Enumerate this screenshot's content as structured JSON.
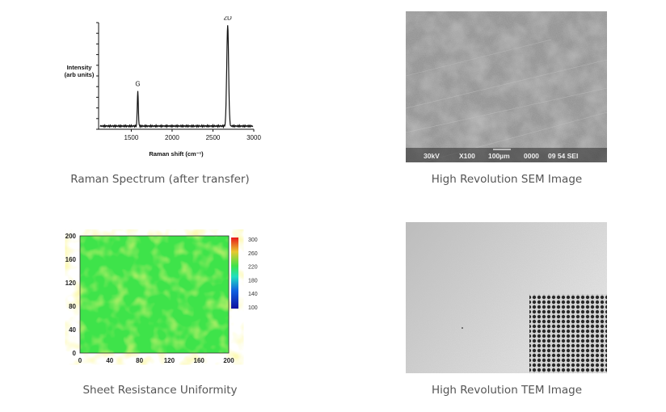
{
  "captions": {
    "raman": "Raman Spectrum (after transfer)",
    "sem": "High Revolution SEM Image",
    "sheet": "Sheet Resistance Uniformity",
    "tem": "High Revolution TEM Image"
  },
  "sem_overlay": {
    "voltage": "30kV",
    "magnification": "X100",
    "scale": "100µm",
    "code": "0000",
    "label": "09 54 SEI"
  },
  "chart_data": [
    {
      "type": "line",
      "title": "",
      "xlabel": "Raman shift (cm⁻¹)",
      "ylabel": "Intensity (arb units)",
      "ylabel_lines": [
        "Intensity",
        "(arb units)"
      ],
      "xlim": [
        1100,
        3000
      ],
      "x_ticks": [
        1500,
        2000,
        2500,
        3000
      ],
      "ylim": [
        0,
        1
      ],
      "peaks": [
        {
          "label": "G",
          "x": 1580,
          "height": 0.33
        },
        {
          "label": "2D",
          "x": 2680,
          "height": 0.95
        }
      ],
      "baseline": 0.03
    },
    {
      "type": "heatmap",
      "title": "",
      "xlim": [
        0,
        200
      ],
      "ylim": [
        0,
        200
      ],
      "x_ticks": [
        0,
        40,
        80,
        120,
        160,
        200
      ],
      "y_ticks": [
        0,
        40,
        80,
        120,
        160,
        200
      ],
      "colorbar_ticks": [
        100,
        140,
        180,
        220,
        260,
        300
      ],
      "colorbar_range": [
        100,
        300
      ],
      "dominant_value": 205,
      "colors": {
        "low": "#1010a0",
        "mid": "#20e0c0",
        "main": "#3ee34a",
        "high": "#e8c830",
        "top": "#e81818"
      }
    }
  ]
}
